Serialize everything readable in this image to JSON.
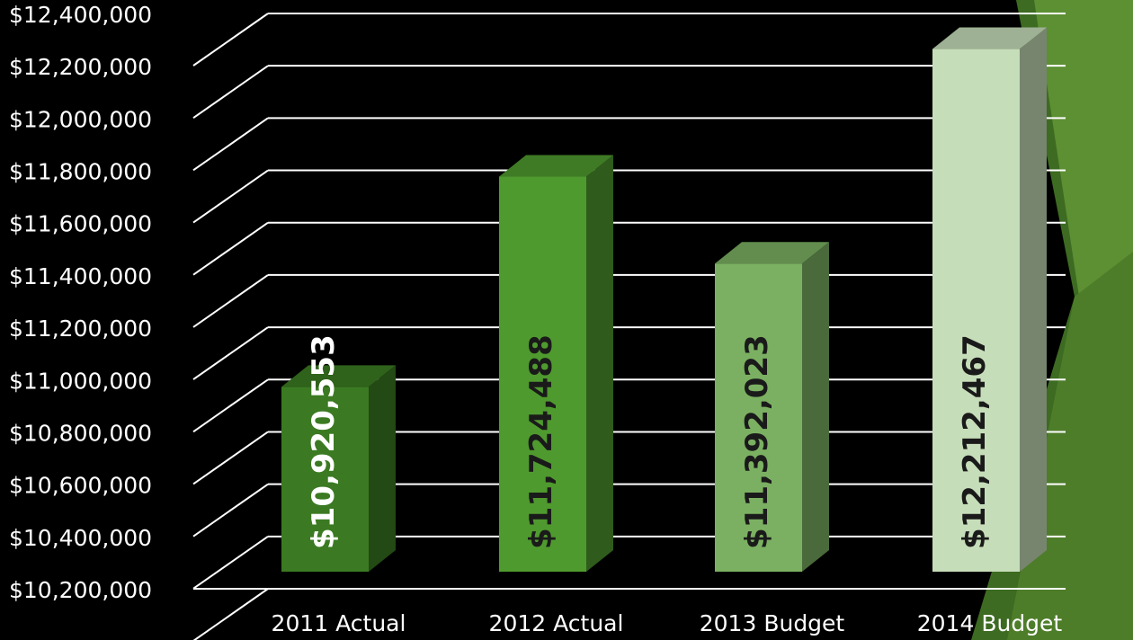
{
  "chart_data": {
    "type": "bar3d",
    "categories": [
      "2011 Actual",
      "2012 Actual",
      "2013 Budget",
      "2014 Budget"
    ],
    "values": [
      10920553,
      11724488,
      11392023,
      12212467
    ],
    "value_labels": [
      "$10,920,553",
      "$11,724,488",
      "$11,392,023",
      "$12,212,467"
    ],
    "colors": [
      "#3b7a22",
      "#4f9a2e",
      "#7bb062",
      "#c6ddb9"
    ],
    "label_colors": [
      "#ffffff",
      "#1a1a1a",
      "#1a1a1a",
      "#1a1a1a"
    ],
    "ylim": [
      10200000,
      12400000
    ],
    "yticks": [
      {
        "value": 10200000,
        "label": "$10,200,000"
      },
      {
        "value": 10400000,
        "label": "$10,400,000"
      },
      {
        "value": 10600000,
        "label": "$10,600,000"
      },
      {
        "value": 10800000,
        "label": "$10,800,000"
      },
      {
        "value": 11000000,
        "label": "$11,000,000"
      },
      {
        "value": 11200000,
        "label": "$11,200,000"
      },
      {
        "value": 11400000,
        "label": "$11,400,000"
      },
      {
        "value": 11600000,
        "label": "$11,600,000"
      },
      {
        "value": 11800000,
        "label": "$11,800,000"
      },
      {
        "value": 12000000,
        "label": "$12,000,000"
      },
      {
        "value": 12200000,
        "label": "$12,200,000"
      },
      {
        "value": 12400000,
        "label": "$12,400,000"
      }
    ],
    "grid": true
  }
}
